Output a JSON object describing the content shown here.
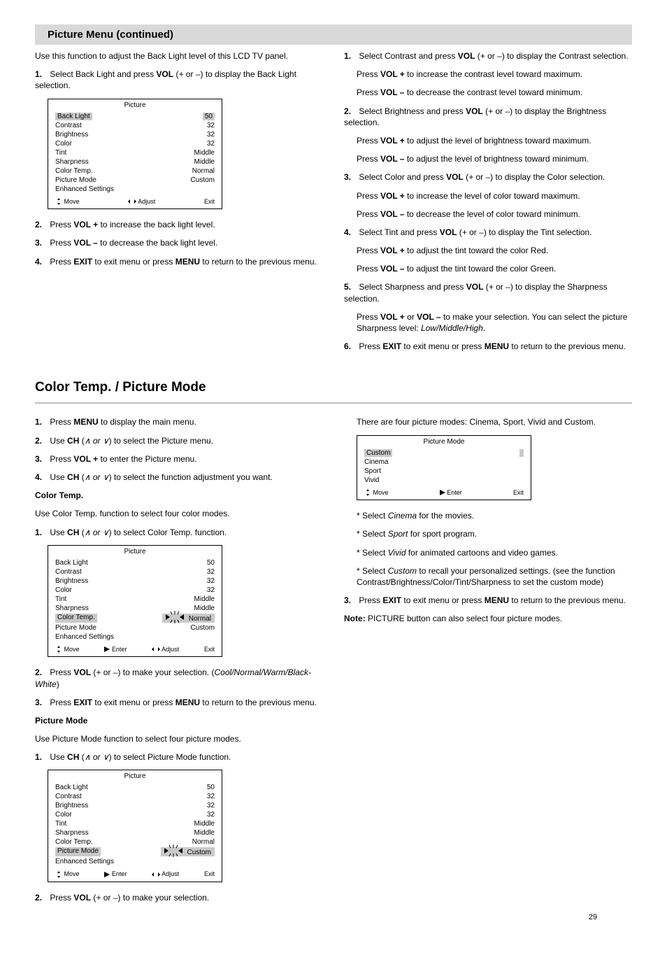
{
  "header": {
    "title": "Picture Menu (continued)"
  },
  "osd_backlight": {
    "title": "Picture",
    "rows": [
      {
        "label": "Back Light",
        "value": "50",
        "selected": true
      },
      {
        "label": "Contrast",
        "value": "32"
      },
      {
        "label": "Brightness",
        "value": "32"
      },
      {
        "label": "Color",
        "value": "32"
      },
      {
        "label": "Tint",
        "value": "Middle"
      },
      {
        "label": "Sharpness",
        "value": "Middle"
      },
      {
        "label": "Color Temp.",
        "value": "Normal"
      },
      {
        "label": "Picture Mode",
        "value": "Custom"
      },
      {
        "label": "Enhanced Settings",
        "value": ""
      }
    ],
    "footer": [
      "Move",
      "Adjust",
      "Exit"
    ]
  },
  "left_top": {
    "intro": "Use this function to adjust the Back Light level of this LCD TV panel.",
    "steps": [
      {
        "n": "1.",
        "t": "Select Back Light and press <b>VOL</b> (<span class=\"ital\">+</span> or <span class=\"ital\">–</span>) to display the Back Light selection.",
        "osd_after": "osd_backlight"
      },
      {
        "n": "2.",
        "t": "Press <b>VOL +</b> to increase the back light level."
      },
      {
        "n": "3.",
        "t": "Press <b>VOL –</b> to decrease the back light level."
      },
      {
        "n": "4.",
        "t": "Press <b>EXIT</b> to exit menu or press <b>MENU</b> to return to the previous menu."
      }
    ]
  },
  "right_top": {
    "contrast": {
      "n": "1.",
      "lines": [
        "Select Contrast and press <b>VOL</b> (<span class=\"ital\">+</span> or <span class=\"ital\">–</span>) to display the Contrast selection.",
        "Press <b>VOL +</b> to increase the contrast level toward maximum.",
        "Press <b>VOL –</b> to decrease the contrast level toward minimum."
      ]
    },
    "brightness": {
      "n": "2.",
      "lines": [
        "Select Brightness and press <b>VOL</b> (<span class=\"ital\">+</span> or <span class=\"ital\">–</span>) to display the Brightness selection.",
        "Press <b>VOL +</b> to adjust the level of brightness toward maximum.",
        "Press <b>VOL –</b> to adjust the level of brightness toward minimum."
      ]
    },
    "color": {
      "n": "3.",
      "lines": [
        "Select Color and press <b>VOL</b> (<span class=\"ital\">+</span> or <span class=\"ital\">–</span>) to display the Color selection.",
        "Press <b>VOL +</b> to increase the level of color toward maximum.",
        "Press <b>VOL –</b> to decrease the level of color toward minimum."
      ]
    },
    "tint": {
      "n": "4.",
      "lines": [
        "Select Tint and press <b>VOL</b> (<span class=\"ital\">+</span> or <span class=\"ital\">–</span>) to display the Tint selection.",
        "Press <b>VOL +</b> to adjust the tint toward the color Red.",
        "Press <b>VOL –</b> to adjust the tint toward the color Green."
      ]
    },
    "sharpness": {
      "n": "5.",
      "lines": [
        "Select Sharpness and press <b>VOL</b> (<span class=\"ital\">+</span> or <span class=\"ital\">–</span>) to display the Sharpness selection.",
        "Press <b>VOL +</b> or <b>VOL –</b> to make your selection. You can select the picture Sharpness level: <span class=\"ital\">Low/Middle/High</span>."
      ]
    },
    "exit": {
      "n": "6.",
      "lines": [
        "Press <b>EXIT</b> to exit menu or press <b>MENU</b> to return to the previous menu."
      ]
    }
  },
  "section2": {
    "title": "Color Temp. / Picture Mode"
  },
  "left_bottom": {
    "steps": [
      {
        "n": "1.",
        "t": "Press <b>MENU</b> to display the main menu."
      },
      {
        "n": "2.",
        "t": "Use <b>CH</b> (<span class=\"ital\">∧ or ∨</span>) to select the Picture menu."
      },
      {
        "n": "3.",
        "t": "Press <b>VOL +</b> to enter the Picture menu."
      },
      {
        "n": "4.",
        "t": "Use <b>CH</b> (<span class=\"ital\">∧ or ∨</span>) to select the function adjustment you want."
      }
    ],
    "color_temp": {
      "heading": "Color Temp.",
      "intro": "Use Color Temp. function to select four color modes.",
      "steps": [
        {
          "n": "1.",
          "t": "Use <b>CH</b> (<span class=\"ital\">∧ or ∨</span>) to select Color Temp. function.",
          "osd_after": "osd_colortemp"
        },
        {
          "n": "2.",
          "t": "Press <b>VOL</b> (<span class=\"ital\">+</span> or <span class=\"ital\">–</span>) to make your selection. (<span class=\"ital\">Cool/Normal/Warm/Black-White</span>)"
        },
        {
          "n": "3.",
          "t": "Press <b>EXIT</b> to exit menu or press <b>MENU</b> to return to the previous menu."
        }
      ]
    },
    "picture_mode": {
      "heading": "Picture Mode",
      "intro": "Use Picture Mode function to select four picture modes.",
      "steps": [
        {
          "n": "1.",
          "t": "Use <b>CH</b> (<span class=\"ital\">∧ or ∨</span>) to select Picture Mode function.",
          "osd_after": "osd_picturemode"
        },
        {
          "n": "2.",
          "t": "Press <b>VOL</b> (<span class=\"ital\">+</span> or <span class=\"ital\">–</span>) to make your selection."
        }
      ]
    }
  },
  "osd_colortemp": {
    "title": "Picture",
    "rows": [
      {
        "label": "Back Light",
        "value": "50"
      },
      {
        "label": "Contrast",
        "value": "32"
      },
      {
        "label": "Brightness",
        "value": "32"
      },
      {
        "label": "Color",
        "value": "32"
      },
      {
        "label": "Tint",
        "value": "Middle"
      },
      {
        "label": "Sharpness",
        "value": "Middle"
      },
      {
        "label": "Color Temp.",
        "value": "Normal",
        "selected": true,
        "adjust": true
      },
      {
        "label": "Picture Mode",
        "value": "Custom"
      },
      {
        "label": "Enhanced Settings",
        "value": ""
      }
    ],
    "footer_extended": {
      "left": "Move",
      "enter_label": "Enter",
      "adjust_label": "Adjust",
      "exit": "Exit"
    }
  },
  "osd_picturemode": {
    "title": "Picture",
    "rows": [
      {
        "label": "Back Light",
        "value": "50"
      },
      {
        "label": "Contrast",
        "value": "32"
      },
      {
        "label": "Brightness",
        "value": "32"
      },
      {
        "label": "Color",
        "value": "32"
      },
      {
        "label": "Tint",
        "value": "Middle"
      },
      {
        "label": "Sharpness",
        "value": "Middle"
      },
      {
        "label": "Color Temp.",
        "value": "Normal"
      },
      {
        "label": "Picture Mode",
        "value": "Custom",
        "selected": true,
        "adjust": true
      },
      {
        "label": "Enhanced Settings",
        "value": ""
      }
    ],
    "footer_extended": {
      "left": "Move",
      "enter_label": "Enter",
      "adjust_label": "Adjust",
      "exit": "Exit"
    }
  },
  "right_bottom": {
    "intro": "There are four picture modes: Cinema, Sport, Vivid and Custom.",
    "osd_after": "osd_picturemode_right",
    "notes": [
      "* Select <span class=\"ital\">Cinema</span> for the movies.",
      "* Select <span class=\"ital\">Sport</span> for sport program.",
      "* Select <span class=\"ital\">Vivid</span> for animated cartoons and video games.",
      "* Select <span class=\"ital\">Custom</span> to recall your personalized settings. (see the function Contrast/Brightness/Color/Tint/Sharpness to set the custom mode)"
    ],
    "note2_n": "3.",
    "note2": "Press <b>EXIT</b> to exit menu or press <b>MENU</b> to return to the previous menu.",
    "note3": "<b>Note:</b> PICTURE button can also select four picture modes."
  },
  "osd_picturemode_right": {
    "title": "Picture Mode",
    "rows": [
      {
        "label": "Custom",
        "value": "",
        "selected": true
      },
      {
        "label": "Cinema",
        "value": ""
      },
      {
        "label": "Sport",
        "value": ""
      },
      {
        "label": "Vivid",
        "value": ""
      }
    ],
    "footer": [
      "Move",
      "Enter",
      "Exit"
    ]
  },
  "page_number": "29",
  "colors": {
    "header_bg": "#d9d9d9",
    "osd_sel_bg": "#c9c9c9",
    "rule": "#c0c0c0",
    "text": "#000000",
    "bg": "#ffffff"
  }
}
